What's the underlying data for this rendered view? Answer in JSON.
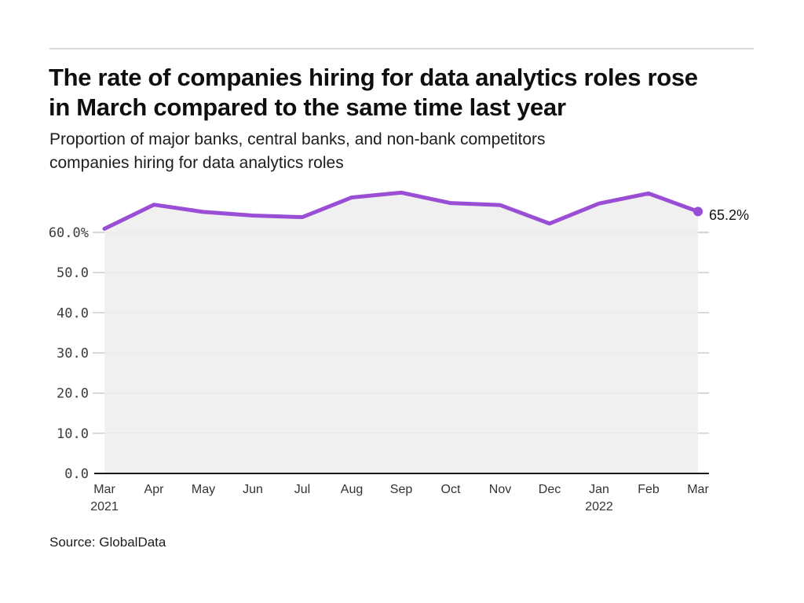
{
  "header": {
    "title_lines": [
      "The rate of companies hiring for data analytics roles rose",
      "in March compared to the same time last year"
    ],
    "subtitle_lines": [
      "Proportion of major banks, central banks, and non-bank competitors",
      "companies hiring for data analytics roles"
    ]
  },
  "footer": {
    "source": "Source: GlobalData"
  },
  "colors": {
    "line": "#9a4dd5",
    "dot": "#9a4dd5",
    "area_fill": "#eeeeee",
    "grid": "#c9c9c9",
    "axis": "#1a1a1a",
    "y_tick_text": "#3c3c3c",
    "x_tick_text": "#333333",
    "end_label_text": "#141414"
  },
  "chart_data": {
    "type": "line",
    "title": "The rate of companies hiring for data analytics roles rose in March compared to the same time last year",
    "subtitle": "Proportion of major banks, central banks, and non-bank competitors companies hiring for data analytics roles",
    "source": "Source: GlobalData",
    "categories": [
      "Mar 2021",
      "Apr",
      "May",
      "Jun",
      "Jul",
      "Aug",
      "Sep",
      "Oct",
      "Nov",
      "Dec",
      "Jan 2022",
      "Feb",
      "Mar 2022"
    ],
    "values": [
      60.9,
      66.9,
      65.1,
      64.2,
      63.8,
      68.7,
      69.9,
      67.3,
      66.8,
      62.2,
      67.2,
      69.7,
      65.2
    ],
    "end_label": "65.2%",
    "xlabel": "",
    "ylabel": "",
    "ylim": [
      0,
      70
    ],
    "grid": "horizontal",
    "legend": "none",
    "y_ticks": {
      "labels": [
        "60.0%",
        "50.0",
        "40.0",
        "30.0",
        "20.0",
        "10.0",
        "0.0"
      ],
      "values": [
        60,
        50,
        40,
        30,
        20,
        10,
        0
      ]
    },
    "x_ticks": [
      {
        "label": "Mar",
        "year": "2021"
      },
      {
        "label": "Apr"
      },
      {
        "label": "May"
      },
      {
        "label": "Jun"
      },
      {
        "label": "Jul"
      },
      {
        "label": "Aug"
      },
      {
        "label": "Sep"
      },
      {
        "label": "Oct"
      },
      {
        "label": "Nov"
      },
      {
        "label": "Dec"
      },
      {
        "label": "Jan",
        "year": "2022"
      },
      {
        "label": "Feb"
      },
      {
        "label": "Mar"
      }
    ]
  }
}
